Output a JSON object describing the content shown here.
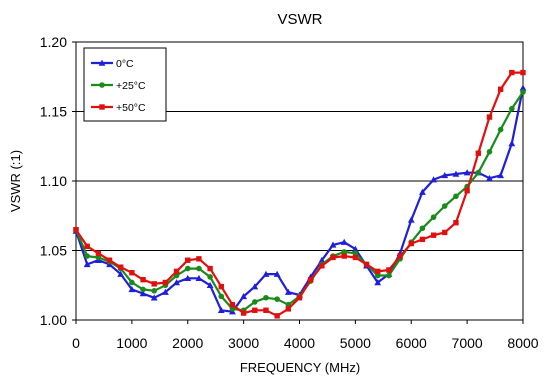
{
  "chart_data": {
    "type": "line",
    "title": "VSWR",
    "xlabel": "FREQUENCY (MHz)",
    "ylabel": "VSWR (:1)",
    "xlim": [
      0,
      8000
    ],
    "ylim": [
      1.0,
      1.2
    ],
    "xticks": [
      "0",
      "1000",
      "2000",
      "3000",
      "4000",
      "5000",
      "6000",
      "7000",
      "8000"
    ],
    "yticks": [
      "1.00",
      "1.05",
      "1.10",
      "1.15",
      "1.20"
    ],
    "grid": "horizontal",
    "legend_position": "top-left",
    "series": [
      {
        "name": "0°C",
        "color": "#1f1fd8",
        "marker": "triangle",
        "x": [
          0,
          200,
          400,
          600,
          800,
          1000,
          1200,
          1400,
          1600,
          1800,
          2000,
          2200,
          2400,
          2600,
          2800,
          3000,
          3200,
          3400,
          3600,
          3800,
          4000,
          4200,
          4400,
          4600,
          4800,
          5000,
          5200,
          5400,
          5600,
          5800,
          6000,
          6200,
          6400,
          6600,
          6800,
          7000,
          7200,
          7400,
          7600,
          7800,
          8000
        ],
        "y": [
          1.064,
          1.04,
          1.043,
          1.04,
          1.033,
          1.022,
          1.019,
          1.016,
          1.02,
          1.027,
          1.03,
          1.03,
          1.025,
          1.007,
          1.006,
          1.017,
          1.024,
          1.033,
          1.033,
          1.02,
          1.018,
          1.031,
          1.043,
          1.054,
          1.056,
          1.051,
          1.039,
          1.027,
          1.033,
          1.048,
          1.072,
          1.092,
          1.101,
          1.104,
          1.105,
          1.106,
          1.106,
          1.102,
          1.104,
          1.127,
          1.167
        ]
      },
      {
        "name": "+25°C",
        "color": "#1a8a1a",
        "marker": "circle",
        "x": [
          0,
          200,
          400,
          600,
          800,
          1000,
          1200,
          1400,
          1600,
          1800,
          2000,
          2200,
          2400,
          2600,
          2800,
          3000,
          3200,
          3400,
          3600,
          3800,
          4000,
          4200,
          4400,
          4600,
          4800,
          5000,
          5200,
          5400,
          5600,
          5800,
          6000,
          6200,
          6400,
          6600,
          6800,
          7000,
          7200,
          7400,
          7600,
          7800,
          8000
        ],
        "y": [
          1.065,
          1.046,
          1.045,
          1.042,
          1.037,
          1.027,
          1.022,
          1.021,
          1.025,
          1.032,
          1.037,
          1.037,
          1.031,
          1.017,
          1.008,
          1.007,
          1.013,
          1.016,
          1.015,
          1.011,
          1.017,
          1.028,
          1.04,
          1.046,
          1.049,
          1.048,
          1.04,
          1.032,
          1.032,
          1.044,
          1.056,
          1.066,
          1.074,
          1.082,
          1.089,
          1.096,
          1.106,
          1.121,
          1.137,
          1.152,
          1.164
        ]
      },
      {
        "name": "+50°C",
        "color": "#e01010",
        "marker": "square",
        "x": [
          0,
          200,
          400,
          600,
          800,
          1000,
          1200,
          1400,
          1600,
          1800,
          2000,
          2200,
          2400,
          2600,
          2800,
          3000,
          3200,
          3400,
          3600,
          3800,
          4000,
          4200,
          4400,
          4600,
          4800,
          5000,
          5200,
          5400,
          5600,
          5800,
          6000,
          6200,
          6400,
          6600,
          6800,
          7000,
          7200,
          7400,
          7600,
          7800,
          8000
        ],
        "y": [
          1.065,
          1.053,
          1.048,
          1.043,
          1.038,
          1.034,
          1.029,
          1.026,
          1.027,
          1.035,
          1.043,
          1.044,
          1.037,
          1.024,
          1.011,
          1.005,
          1.007,
          1.007,
          1.003,
          1.008,
          1.016,
          1.029,
          1.039,
          1.045,
          1.046,
          1.045,
          1.04,
          1.035,
          1.036,
          1.046,
          1.055,
          1.058,
          1.061,
          1.063,
          1.07,
          1.093,
          1.12,
          1.146,
          1.166,
          1.178,
          1.178
        ]
      }
    ]
  }
}
